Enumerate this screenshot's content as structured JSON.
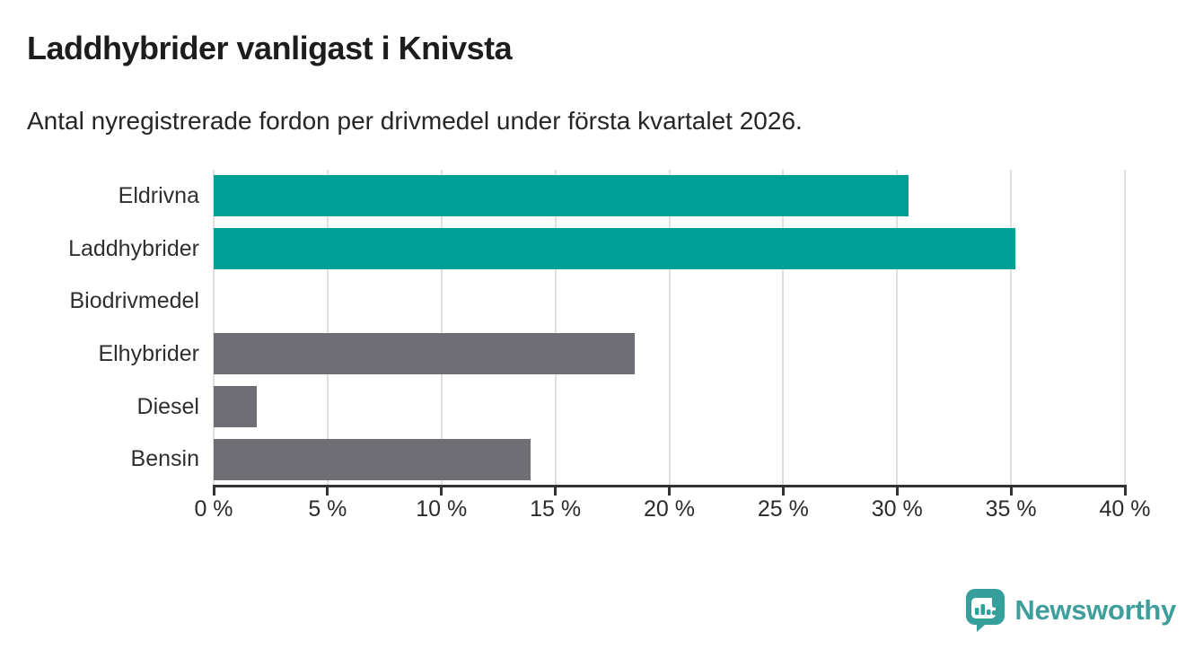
{
  "header": {
    "title": "Laddhybrider vanligast i Knivsta",
    "subtitle": "Antal nyregistrerade fordon per drivmedel under första kvartalet 2026."
  },
  "chart_data": {
    "type": "bar",
    "orientation": "horizontal",
    "categories": [
      "Eldrivna",
      "Laddhybrider",
      "Biodrivmedel",
      "Elhybrider",
      "Diesel",
      "Bensin"
    ],
    "values": [
      30.5,
      35.2,
      0,
      18.5,
      1.9,
      13.9
    ],
    "unit": "%",
    "xlim": [
      0,
      40
    ],
    "x_ticks": [
      0,
      5,
      10,
      15,
      20,
      25,
      30,
      35,
      40
    ],
    "x_tick_labels": [
      "0 %",
      "5 %",
      "10 %",
      "15 %",
      "20 %",
      "25 %",
      "30 %",
      "35 %",
      "40 %"
    ],
    "grid": true,
    "bar_colors": [
      "#00a096",
      "#00a096",
      "#6e6e74",
      "#6e6e74",
      "#6e6e74",
      "#6e6e74"
    ],
    "colors": {
      "highlight": "#00a096",
      "default": "#6e6e74",
      "gridline": "#e0e0e0",
      "axis": "#333333"
    }
  },
  "footer": {
    "brand": "Newsworthy",
    "brand_color": "#3d9e9b",
    "logo_icon": "bar-chart-speech-bubble"
  }
}
